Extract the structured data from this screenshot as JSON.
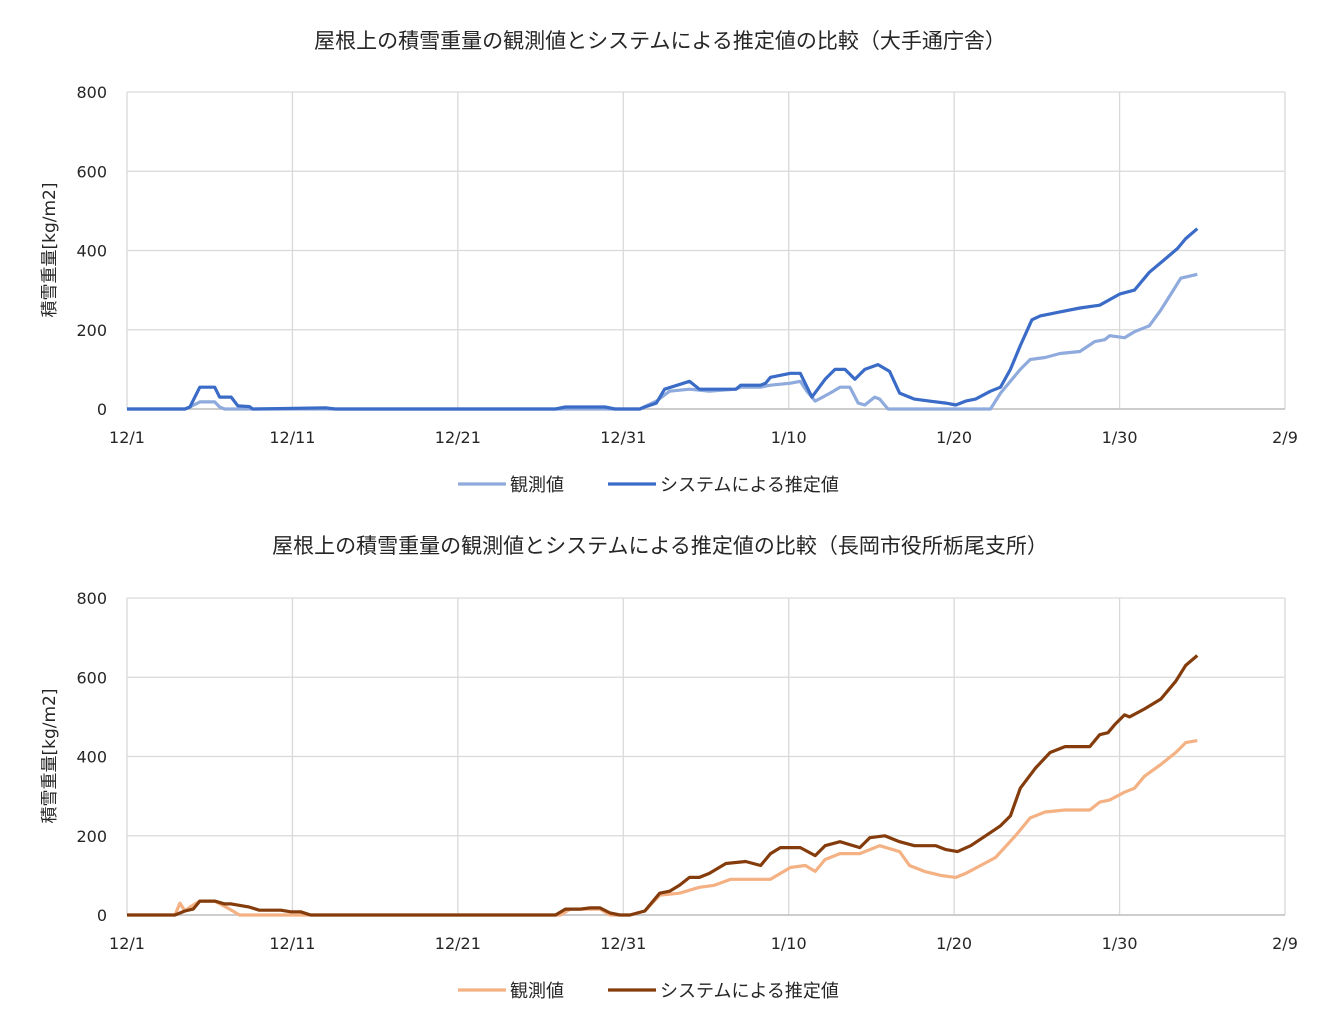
{
  "chart_data": [
    {
      "type": "line",
      "title": "屋根上の積雪重量の観測値とシステムによる推定値の比較（大手通庁舎）",
      "xlabel": "",
      "ylabel": "積雪重量[kg/m2]",
      "x_unit": "days since 12/1",
      "xlim": [
        0,
        70
      ],
      "ylim": [
        0,
        800
      ],
      "x_ticks": [
        0,
        10,
        20,
        30,
        40,
        50,
        60,
        70
      ],
      "x_tick_labels": [
        "12/1",
        "12/11",
        "12/21",
        "12/31",
        "1/10",
        "1/20",
        "1/30",
        "2/9"
      ],
      "y_ticks": [
        0,
        200,
        400,
        600,
        800
      ],
      "y_tick_labels": [
        "0",
        "200",
        "400",
        "600",
        "800"
      ],
      "grid": true,
      "legend": "bottom",
      "series": [
        {
          "name": "観測値",
          "color": "#8faadc",
          "points": [
            [
              0,
              0
            ],
            [
              3.5,
              0
            ],
            [
              3.8,
              5
            ],
            [
              4.4,
              18
            ],
            [
              5.3,
              18
            ],
            [
              5.6,
              5
            ],
            [
              5.9,
              0
            ],
            [
              31.0,
              0
            ],
            [
              32.0,
              20
            ],
            [
              32.8,
              45
            ],
            [
              34.0,
              50
            ],
            [
              35.2,
              45
            ],
            [
              36.8,
              50
            ],
            [
              37.1,
              55
            ],
            [
              38.3,
              55
            ],
            [
              38.9,
              60
            ],
            [
              40.1,
              65
            ],
            [
              40.7,
              70
            ],
            [
              41.1,
              45
            ],
            [
              41.6,
              20
            ],
            [
              42.5,
              40
            ],
            [
              43.1,
              55
            ],
            [
              43.7,
              55
            ],
            [
              44.2,
              15
            ],
            [
              44.6,
              10
            ],
            [
              45.2,
              30
            ],
            [
              45.5,
              25
            ],
            [
              46.0,
              0
            ],
            [
              52.2,
              0
            ],
            [
              52.8,
              40
            ],
            [
              54.0,
              100
            ],
            [
              54.6,
              125
            ],
            [
              55.5,
              130
            ],
            [
              56.4,
              140
            ],
            [
              57.6,
              145
            ],
            [
              58.5,
              170
            ],
            [
              59.1,
              175
            ],
            [
              59.4,
              185
            ],
            [
              60.3,
              180
            ],
            [
              60.9,
              195
            ],
            [
              61.8,
              210
            ],
            [
              62.5,
              250
            ],
            [
              63.1,
              290
            ],
            [
              63.7,
              330
            ],
            [
              64.7,
              340
            ]
          ]
        },
        {
          "name": "システムによる推定値",
          "color": "#3a6bc7",
          "points": [
            [
              0,
              0
            ],
            [
              3.5,
              0
            ],
            [
              3.8,
              5
            ],
            [
              4.4,
              55
            ],
            [
              5.3,
              55
            ],
            [
              5.6,
              30
            ],
            [
              6.3,
              30
            ],
            [
              6.7,
              8
            ],
            [
              7.4,
              6
            ],
            [
              7.6,
              0
            ],
            [
              12.0,
              3
            ],
            [
              12.6,
              0
            ],
            [
              25.9,
              0
            ],
            [
              26.5,
              5
            ],
            [
              28.9,
              5
            ],
            [
              29.5,
              0
            ],
            [
              31.0,
              0
            ],
            [
              31.3,
              5
            ],
            [
              32.0,
              15
            ],
            [
              32.5,
              50
            ],
            [
              34.0,
              70
            ],
            [
              34.6,
              50
            ],
            [
              36.8,
              50
            ],
            [
              37.1,
              60
            ],
            [
              38.3,
              60
            ],
            [
              38.6,
              65
            ],
            [
              38.9,
              80
            ],
            [
              40.1,
              90
            ],
            [
              40.7,
              90
            ],
            [
              41.4,
              30
            ],
            [
              42.2,
              75
            ],
            [
              42.8,
              100
            ],
            [
              43.4,
              100
            ],
            [
              44.0,
              75
            ],
            [
              44.6,
              100
            ],
            [
              45.4,
              112
            ],
            [
              46.1,
              95
            ],
            [
              46.7,
              40
            ],
            [
              47.6,
              25
            ],
            [
              48.5,
              20
            ],
            [
              49.5,
              15
            ],
            [
              50.1,
              10
            ],
            [
              50.7,
              20
            ],
            [
              51.3,
              25
            ],
            [
              52.2,
              45
            ],
            [
              52.8,
              55
            ],
            [
              53.4,
              100
            ],
            [
              54.0,
              160
            ],
            [
              54.7,
              225
            ],
            [
              55.2,
              235
            ],
            [
              56.4,
              245
            ],
            [
              57.6,
              255
            ],
            [
              58.8,
              262
            ],
            [
              60.0,
              290
            ],
            [
              60.9,
              300
            ],
            [
              61.8,
              345
            ],
            [
              62.8,
              380
            ],
            [
              63.5,
              405
            ],
            [
              64.0,
              430
            ],
            [
              64.7,
              455
            ]
          ]
        }
      ]
    },
    {
      "type": "line",
      "title": "屋根上の積雪重量の観測値とシステムによる推定値の比較（長岡市役所栃尾支所）",
      "xlabel": "",
      "ylabel": "積雪重量[kg/m2]",
      "x_unit": "days since 12/1",
      "xlim": [
        0,
        70
      ],
      "ylim": [
        0,
        800
      ],
      "x_ticks": [
        0,
        10,
        20,
        30,
        40,
        50,
        60,
        70
      ],
      "x_tick_labels": [
        "12/1",
        "12/11",
        "12/21",
        "12/31",
        "1/10",
        "1/20",
        "1/30",
        "2/9"
      ],
      "y_ticks": [
        0,
        200,
        400,
        600,
        800
      ],
      "y_tick_labels": [
        "0",
        "200",
        "400",
        "600",
        "800"
      ],
      "grid": true,
      "legend": "bottom",
      "series": [
        {
          "name": "観測値",
          "color": "#f4b183",
          "points": [
            [
              0,
              0
            ],
            [
              2.9,
              0
            ],
            [
              3.2,
              30
            ],
            [
              3.5,
              10
            ],
            [
              3.8,
              20
            ],
            [
              4.4,
              35
            ],
            [
              5.3,
              35
            ],
            [
              6.2,
              15
            ],
            [
              6.8,
              0
            ],
            [
              26.2,
              0
            ],
            [
              26.8,
              15
            ],
            [
              28.6,
              15
            ],
            [
              29.2,
              0
            ],
            [
              30.4,
              0
            ],
            [
              31.3,
              10
            ],
            [
              32.2,
              50
            ],
            [
              33.4,
              55
            ],
            [
              34.6,
              70
            ],
            [
              35.5,
              75
            ],
            [
              36.5,
              90
            ],
            [
              38.9,
              90
            ],
            [
              40.1,
              120
            ],
            [
              41.0,
              125
            ],
            [
              41.6,
              110
            ],
            [
              42.2,
              140
            ],
            [
              43.1,
              155
            ],
            [
              44.3,
              155
            ],
            [
              45.5,
              175
            ],
            [
              46.7,
              160
            ],
            [
              47.3,
              125
            ],
            [
              48.2,
              110
            ],
            [
              49.2,
              100
            ],
            [
              50.1,
              95
            ],
            [
              50.7,
              105
            ],
            [
              51.6,
              125
            ],
            [
              52.5,
              145
            ],
            [
              53.7,
              200
            ],
            [
              54.6,
              245
            ],
            [
              55.5,
              260
            ],
            [
              56.7,
              265
            ],
            [
              58.2,
              265
            ],
            [
              58.8,
              285
            ],
            [
              59.4,
              290
            ],
            [
              60.3,
              310
            ],
            [
              60.9,
              320
            ],
            [
              61.5,
              350
            ],
            [
              62.5,
              380
            ],
            [
              63.4,
              410
            ],
            [
              64.0,
              435
            ],
            [
              64.7,
              440
            ]
          ]
        },
        {
          "name": "システムによる推定値",
          "color": "#843c0c",
          "points": [
            [
              0,
              0
            ],
            [
              2.9,
              0
            ],
            [
              3.5,
              10
            ],
            [
              4.0,
              15
            ],
            [
              4.4,
              35
            ],
            [
              5.3,
              35
            ],
            [
              5.9,
              28
            ],
            [
              6.3,
              28
            ],
            [
              7.4,
              20
            ],
            [
              8.0,
              12
            ],
            [
              9.3,
              12
            ],
            [
              9.9,
              8
            ],
            [
              10.5,
              8
            ],
            [
              11.1,
              0
            ],
            [
              25.9,
              0
            ],
            [
              26.5,
              15
            ],
            [
              27.4,
              15
            ],
            [
              28.0,
              18
            ],
            [
              28.6,
              18
            ],
            [
              29.2,
              5
            ],
            [
              29.8,
              0
            ],
            [
              30.4,
              0
            ],
            [
              31.3,
              10
            ],
            [
              32.2,
              55
            ],
            [
              32.8,
              60
            ],
            [
              33.4,
              75
            ],
            [
              34.0,
              95
            ],
            [
              34.6,
              95
            ],
            [
              35.2,
              105
            ],
            [
              36.2,
              130
            ],
            [
              37.4,
              135
            ],
            [
              38.3,
              125
            ],
            [
              38.9,
              155
            ],
            [
              39.5,
              170
            ],
            [
              40.7,
              170
            ],
            [
              41.6,
              150
            ],
            [
              42.2,
              175
            ],
            [
              43.1,
              185
            ],
            [
              44.3,
              170
            ],
            [
              44.9,
              195
            ],
            [
              45.8,
              200
            ],
            [
              46.7,
              185
            ],
            [
              47.6,
              175
            ],
            [
              48.9,
              175
            ],
            [
              49.5,
              165
            ],
            [
              50.2,
              160
            ],
            [
              51.0,
              175
            ],
            [
              51.9,
              200
            ],
            [
              52.8,
              225
            ],
            [
              53.4,
              250
            ],
            [
              54.0,
              320
            ],
            [
              54.9,
              370
            ],
            [
              55.8,
              410
            ],
            [
              56.7,
              425
            ],
            [
              58.2,
              425
            ],
            [
              58.8,
              455
            ],
            [
              59.3,
              460
            ],
            [
              59.7,
              480
            ],
            [
              60.3,
              505
            ],
            [
              60.6,
              500
            ],
            [
              61.5,
              520
            ],
            [
              62.5,
              545
            ],
            [
              63.4,
              590
            ],
            [
              64.0,
              630
            ],
            [
              64.7,
              655
            ]
          ]
        }
      ]
    }
  ]
}
